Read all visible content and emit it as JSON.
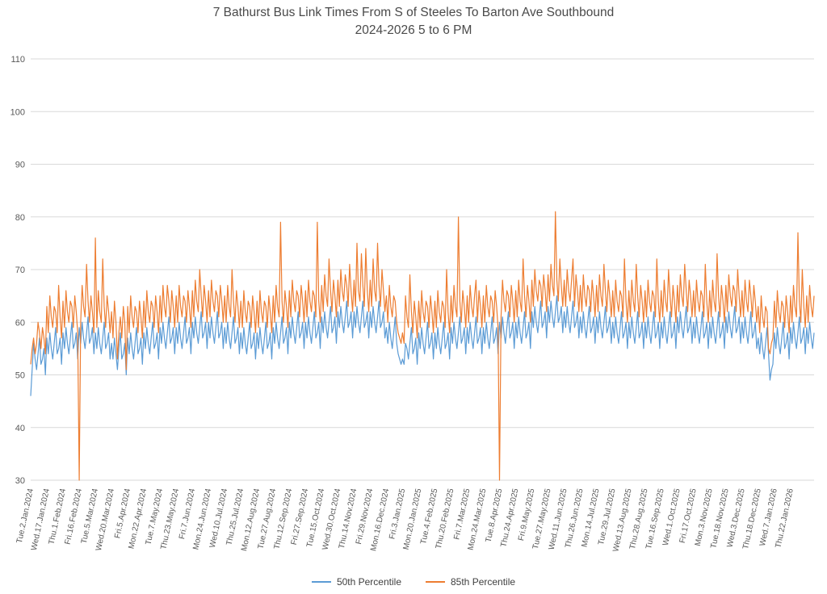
{
  "chart": {
    "title_line1": "7 Bathurst Bus Link Times From S of Steeles To Barton Ave Southbound",
    "title_line2": "2024-2026 5 to 6 PM",
    "legend": [
      {
        "label": "50th Percentile",
        "color": "#5B9BD5"
      },
      {
        "label": "85th Percentile",
        "color": "#ED7D31"
      }
    ]
  },
  "chart_data": {
    "type": "line",
    "title": "7 Bathurst Bus Link Times From S of Steeles To Barton Ave Southbound",
    "subtitle": "2024-2026 5 to 6 PM",
    "ylabel": "",
    "xlabel": "",
    "ylim": [
      30,
      110
    ],
    "y_ticks": [
      30,
      40,
      50,
      60,
      70,
      80,
      90,
      100,
      110
    ],
    "grid": "horizontal",
    "gridline_color": "#D9D9D9",
    "legend_position": "bottom",
    "x_tick_interval": 11,
    "x_tick_labels": [
      "Tue.2.Jan.2024",
      "Wed.17.Jan.2024",
      "Thu.1.Feb.2024",
      "Fri.16.Feb.2024",
      "Tue.5.Mar.2024",
      "Wed.20.Mar.2024",
      "Fri.5.Apr.2024",
      "Mon.22.Apr.2024",
      "Tue.7.May.2024",
      "Thu.23.May.2024",
      "Fri.7.Jun.2024",
      "Mon.24.Jun.2024",
      "Wed.10.Jul.2024",
      "Thu.25.Jul.2024",
      "Mon.12.Aug.2024",
      "Tue.27.Aug.2024",
      "Thu.12.Sep.2024",
      "Fri.27.Sep.2024",
      "Tue.15.Oct.2024",
      "Wed.30.Oct.2024",
      "Thu.14.Nov.2024",
      "Fri.29.Nov.2024",
      "Mon.16.Dec.2024",
      "Fri.3.Jan.2025",
      "Mon.20.Jan.2025",
      "Tue.4.Feb.2025",
      "Thu.20.Feb.2025",
      "Fri.7.Mar.2025",
      "Mon.24.Mar.2025",
      "Tue.8.Apr.2025",
      "Thu.24.Apr.2025",
      "Fri.9.May.2025",
      "Tue.27.May.2025",
      "Wed.11.Jun.2025",
      "Thu.26.Jun.2025",
      "Mon.14.Jul.2025",
      "Tue.29.Jul.2025",
      "Wed.13.Aug.2025",
      "Thu.28.Aug.2025",
      "Tue.16.Sep.2025",
      "Wed.1.Oct.2025",
      "Fri.17.Oct.2025",
      "Mon.3.Nov.2025",
      "Tue.18.Nov.2025",
      "Wed.3.Dec.2025",
      "Thu.18.Dec.2025",
      "Wed.7.Jan.2026",
      "Thu.22.Jan.2026"
    ],
    "series": [
      {
        "name": "50th Percentile",
        "color": "#5B9BD5",
        "values": [
          46,
          51,
          56,
          53,
          51,
          54,
          57,
          52,
          53,
          55,
          50,
          57,
          54,
          58,
          55,
          53,
          56,
          59,
          54,
          55,
          57,
          52,
          58,
          55,
          59,
          56,
          54,
          57,
          60,
          55,
          56,
          58,
          53,
          59,
          56,
          60,
          57,
          55,
          58,
          61,
          56,
          57,
          59,
          54,
          58,
          55,
          59,
          56,
          54,
          57,
          60,
          55,
          56,
          58,
          53,
          56,
          53,
          57,
          54,
          51,
          55,
          58,
          53,
          54,
          56,
          50,
          57,
          54,
          58,
          55,
          53,
          56,
          59,
          54,
          55,
          57,
          52,
          58,
          55,
          59,
          56,
          54,
          57,
          60,
          55,
          56,
          58,
          53,
          59,
          56,
          60,
          57,
          55,
          58,
          61,
          56,
          57,
          59,
          54,
          59,
          56,
          60,
          57,
          55,
          58,
          61,
          56,
          57,
          59,
          54,
          60,
          57,
          61,
          58,
          56,
          59,
          62,
          57,
          58,
          60,
          55,
          60,
          57,
          61,
          58,
          56,
          59,
          62,
          57,
          58,
          60,
          55,
          59,
          56,
          60,
          57,
          55,
          58,
          61,
          56,
          57,
          59,
          54,
          58,
          55,
          59,
          56,
          54,
          57,
          60,
          55,
          56,
          58,
          53,
          58,
          55,
          59,
          56,
          54,
          57,
          60,
          55,
          56,
          58,
          53,
          59,
          56,
          60,
          57,
          55,
          58,
          61,
          56,
          57,
          59,
          54,
          60,
          57,
          61,
          58,
          56,
          59,
          62,
          57,
          58,
          60,
          55,
          60,
          57,
          61,
          58,
          56,
          59,
          62,
          57,
          58,
          60,
          55,
          61,
          58,
          62,
          59,
          57,
          60,
          63,
          58,
          59,
          61,
          56,
          62,
          59,
          63,
          60,
          58,
          61,
          64,
          59,
          60,
          62,
          57,
          62,
          59,
          63,
          60,
          58,
          61,
          64,
          59,
          60,
          62,
          57,
          62,
          59,
          63,
          60,
          58,
          61,
          64,
          59,
          60,
          62,
          57,
          59,
          56,
          60,
          57,
          55,
          58,
          61,
          56,
          54,
          53,
          52,
          53,
          52,
          56,
          55,
          53,
          56,
          59,
          54,
          55,
          57,
          52,
          58,
          55,
          59,
          56,
          54,
          57,
          60,
          55,
          56,
          58,
          53,
          58,
          55,
          59,
          56,
          54,
          57,
          60,
          55,
          56,
          58,
          53,
          59,
          56,
          60,
          57,
          55,
          58,
          61,
          56,
          57,
          59,
          54,
          59,
          56,
          60,
          57,
          55,
          58,
          61,
          56,
          57,
          59,
          54,
          59,
          56,
          60,
          57,
          55,
          58,
          61,
          56,
          57,
          59,
          54,
          60,
          57,
          61,
          58,
          56,
          59,
          62,
          57,
          58,
          60,
          55,
          60,
          57,
          61,
          58,
          56,
          59,
          62,
          57,
          58,
          60,
          55,
          62,
          59,
          63,
          60,
          58,
          61,
          64,
          59,
          60,
          62,
          57,
          63,
          60,
          64,
          61,
          59,
          62,
          65,
          60,
          61,
          63,
          58,
          62,
          59,
          63,
          60,
          58,
          61,
          64,
          59,
          60,
          62,
          57,
          61,
          58,
          62,
          59,
          57,
          60,
          63,
          58,
          59,
          61,
          56,
          61,
          58,
          62,
          59,
          57,
          60,
          63,
          58,
          59,
          61,
          56,
          60,
          57,
          61,
          58,
          56,
          59,
          62,
          57,
          58,
          60,
          55,
          60,
          57,
          61,
          58,
          56,
          59,
          62,
          57,
          58,
          60,
          55,
          60,
          57,
          61,
          58,
          56,
          59,
          62,
          57,
          58,
          60,
          55,
          60,
          57,
          61,
          58,
          56,
          59,
          62,
          57,
          58,
          60,
          55,
          61,
          58,
          62,
          59,
          57,
          60,
          63,
          58,
          59,
          61,
          56,
          60,
          57,
          61,
          58,
          56,
          59,
          62,
          57,
          58,
          60,
          55,
          60,
          57,
          61,
          58,
          56,
          59,
          62,
          57,
          58,
          60,
          55,
          61,
          58,
          62,
          59,
          57,
          60,
          63,
          58,
          59,
          61,
          56,
          60,
          57,
          61,
          58,
          56,
          59,
          62,
          57,
          58,
          60,
          55,
          57,
          54,
          58,
          55,
          53,
          56,
          59,
          54,
          49,
          51,
          52,
          58,
          55,
          59,
          56,
          54,
          57,
          60,
          55,
          56,
          58,
          53,
          59,
          56,
          60,
          57,
          55,
          58,
          61,
          56,
          57,
          59,
          54,
          59,
          56,
          60,
          57,
          55,
          58
        ]
      },
      {
        "name": "85th Percentile",
        "color": "#ED7D31",
        "values": [
          52,
          55,
          57,
          54,
          56,
          60,
          58,
          55,
          59,
          57,
          54,
          63,
          58,
          65,
          61,
          59,
          63,
          62,
          58,
          67,
          61,
          57,
          64,
          59,
          66,
          62,
          60,
          64,
          63,
          59,
          65,
          62,
          58,
          30,
          60,
          67,
          63,
          61,
          71,
          64,
          60,
          65,
          62,
          58,
          76,
          59,
          66,
          62,
          60,
          72,
          63,
          59,
          65,
          62,
          58,
          62,
          57,
          64,
          60,
          53,
          58,
          61,
          57,
          63,
          60,
          51,
          63,
          58,
          65,
          61,
          59,
          63,
          62,
          58,
          64,
          61,
          57,
          64,
          59,
          66,
          62,
          60,
          64,
          63,
          59,
          65,
          62,
          58,
          65,
          60,
          67,
          63,
          61,
          67,
          64,
          60,
          66,
          63,
          59,
          65,
          60,
          67,
          63,
          61,
          65,
          64,
          60,
          66,
          63,
          59,
          66,
          61,
          68,
          64,
          62,
          70,
          65,
          61,
          67,
          64,
          60,
          66,
          61,
          68,
          64,
          62,
          66,
          65,
          61,
          67,
          64,
          60,
          65,
          60,
          67,
          63,
          61,
          70,
          64,
          60,
          66,
          63,
          59,
          64,
          59,
          66,
          62,
          60,
          64,
          63,
          59,
          65,
          62,
          58,
          64,
          59,
          66,
          62,
          60,
          64,
          63,
          59,
          65,
          62,
          58,
          65,
          60,
          67,
          63,
          61,
          79,
          64,
          60,
          66,
          63,
          59,
          66,
          61,
          68,
          64,
          62,
          66,
          65,
          61,
          67,
          64,
          60,
          66,
          61,
          68,
          64,
          62,
          66,
          65,
          61,
          79,
          64,
          60,
          67,
          62,
          69,
          65,
          63,
          72,
          66,
          62,
          68,
          65,
          61,
          68,
          63,
          70,
          66,
          64,
          69,
          67,
          63,
          71,
          66,
          62,
          68,
          63,
          75,
          66,
          64,
          73,
          67,
          63,
          74,
          66,
          62,
          68,
          63,
          72,
          66,
          64,
          75,
          67,
          63,
          70,
          66,
          62,
          65,
          60,
          67,
          63,
          61,
          65,
          64,
          60,
          58,
          57,
          56,
          58,
          56,
          65,
          61,
          59,
          69,
          62,
          58,
          64,
          61,
          57,
          64,
          59,
          66,
          62,
          60,
          64,
          63,
          59,
          65,
          62,
          58,
          64,
          59,
          66,
          62,
          60,
          64,
          63,
          59,
          70,
          62,
          58,
          65,
          60,
          67,
          63,
          61,
          80,
          64,
          60,
          66,
          63,
          59,
          65,
          60,
          67,
          63,
          61,
          65,
          68,
          60,
          66,
          63,
          59,
          65,
          60,
          67,
          63,
          61,
          65,
          64,
          60,
          66,
          63,
          59,
          30,
          61,
          68,
          64,
          62,
          66,
          65,
          61,
          67,
          64,
          60,
          66,
          61,
          68,
          64,
          62,
          72,
          65,
          61,
          67,
          64,
          60,
          68,
          63,
          70,
          66,
          64,
          68,
          67,
          63,
          69,
          66,
          62,
          69,
          64,
          71,
          67,
          65,
          81,
          68,
          64,
          72,
          67,
          63,
          68,
          63,
          70,
          66,
          64,
          68,
          72,
          63,
          69,
          66,
          62,
          67,
          62,
          69,
          65,
          63,
          67,
          66,
          62,
          68,
          65,
          61,
          67,
          62,
          69,
          65,
          63,
          71,
          66,
          62,
          68,
          65,
          61,
          66,
          61,
          68,
          64,
          62,
          66,
          65,
          61,
          72,
          64,
          60,
          66,
          61,
          68,
          64,
          62,
          71,
          65,
          61,
          67,
          64,
          60,
          66,
          61,
          68,
          64,
          62,
          66,
          65,
          61,
          72,
          64,
          60,
          66,
          61,
          68,
          64,
          62,
          70,
          65,
          61,
          67,
          64,
          60,
          67,
          62,
          69,
          65,
          63,
          71,
          66,
          62,
          68,
          65,
          61,
          66,
          61,
          68,
          64,
          62,
          66,
          65,
          61,
          71,
          64,
          60,
          66,
          61,
          68,
          64,
          62,
          73,
          65,
          61,
          67,
          64,
          60,
          67,
          62,
          69,
          65,
          63,
          67,
          66,
          62,
          70,
          65,
          61,
          66,
          61,
          68,
          64,
          62,
          68,
          65,
          61,
          67,
          64,
          60,
          63,
          58,
          65,
          61,
          59,
          63,
          62,
          55,
          54,
          56,
          57,
          64,
          59,
          66,
          62,
          60,
          64,
          63,
          59,
          65,
          62,
          58,
          65,
          60,
          67,
          63,
          61,
          77,
          64,
          60,
          70,
          63,
          59,
          65,
          60,
          67,
          63,
          61,
          65
        ]
      }
    ]
  }
}
